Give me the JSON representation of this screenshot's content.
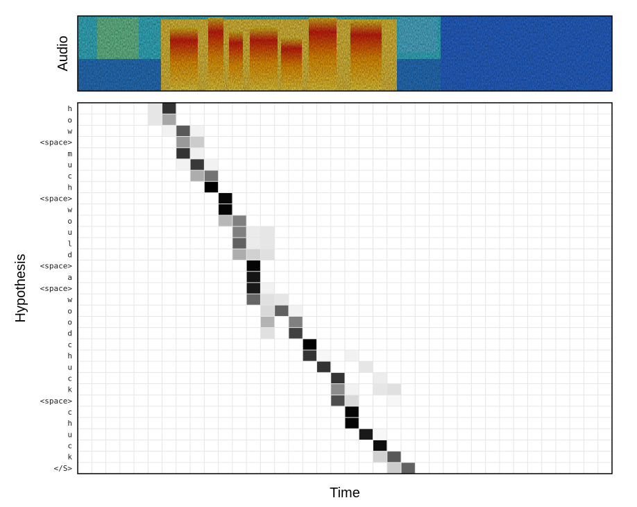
{
  "chart_data": {
    "type": "heatmap",
    "title": "",
    "panels": [
      {
        "name": "audio-spectrogram",
        "ylabel": "Audio"
      },
      {
        "name": "attention-alignment",
        "xlabel": "Time",
        "ylabel": "Hypothesis"
      }
    ],
    "xlabel": "Time",
    "ylabel": "Hypothesis",
    "spectrogram_label": "Audio",
    "n_time_steps": 38,
    "rows": [
      "h",
      "o",
      "w",
      "<space>",
      "m",
      "u",
      "c",
      "h",
      "<space>",
      "w",
      "o",
      "u",
      "l",
      "d",
      "<space>",
      "a",
      "<space>",
      "w",
      "o",
      "o",
      "d",
      "c",
      "h",
      "u",
      "c",
      "k",
      "<space>",
      "c",
      "h",
      "u",
      "c",
      "k",
      "</S>"
    ],
    "colorscale": [
      "#ffffff",
      "#000000"
    ],
    "cells": [
      [
        0,
        5,
        0.1
      ],
      [
        0,
        6,
        0.8
      ],
      [
        1,
        5,
        0.1
      ],
      [
        1,
        6,
        0.35
      ],
      [
        2,
        6,
        0.05
      ],
      [
        2,
        7,
        0.65
      ],
      [
        2,
        8,
        0.05
      ],
      [
        3,
        7,
        0.4
      ],
      [
        3,
        8,
        0.2
      ],
      [
        4,
        7,
        0.8
      ],
      [
        4,
        8,
        0.06
      ],
      [
        5,
        7,
        0.05
      ],
      [
        5,
        8,
        0.78
      ],
      [
        5,
        9,
        0.05
      ],
      [
        6,
        8,
        0.32
      ],
      [
        6,
        9,
        0.55
      ],
      [
        7,
        9,
        1.0
      ],
      [
        8,
        10,
        0.97
      ],
      [
        9,
        10,
        0.98
      ],
      [
        10,
        10,
        0.28
      ],
      [
        10,
        11,
        0.5
      ],
      [
        11,
        11,
        0.5
      ],
      [
        11,
        12,
        0.08
      ],
      [
        11,
        13,
        0.1
      ],
      [
        12,
        11,
        0.62
      ],
      [
        12,
        12,
        0.08
      ],
      [
        12,
        13,
        0.1
      ],
      [
        13,
        11,
        0.32
      ],
      [
        13,
        12,
        0.18
      ],
      [
        13,
        13,
        0.12
      ],
      [
        14,
        12,
        0.98
      ],
      [
        15,
        12,
        0.92
      ],
      [
        16,
        12,
        0.9
      ],
      [
        16,
        13,
        0.05
      ],
      [
        17,
        12,
        0.6
      ],
      [
        17,
        13,
        0.12
      ],
      [
        17,
        14,
        0.1
      ],
      [
        18,
        13,
        0.15
      ],
      [
        18,
        14,
        0.62
      ],
      [
        18,
        15,
        0.05
      ],
      [
        19,
        13,
        0.3
      ],
      [
        19,
        15,
        0.5
      ],
      [
        20,
        13,
        0.12
      ],
      [
        20,
        15,
        0.75
      ],
      [
        21,
        16,
        1.0
      ],
      [
        22,
        16,
        0.8
      ],
      [
        22,
        17,
        0.03
      ],
      [
        22,
        19,
        0.05
      ],
      [
        23,
        17,
        0.8
      ],
      [
        23,
        20,
        0.1
      ],
      [
        24,
        18,
        0.8
      ],
      [
        24,
        21,
        0.07
      ],
      [
        25,
        18,
        0.45
      ],
      [
        25,
        19,
        0.05
      ],
      [
        25,
        21,
        0.1
      ],
      [
        25,
        22,
        0.12
      ],
      [
        26,
        18,
        0.7
      ],
      [
        26,
        19,
        0.15
      ],
      [
        26,
        22,
        0.03
      ],
      [
        27,
        19,
        0.98
      ],
      [
        28,
        19,
        0.98
      ],
      [
        29,
        20,
        0.9
      ],
      [
        29,
        21,
        0.03
      ],
      [
        30,
        21,
        0.95
      ],
      [
        31,
        21,
        0.18
      ],
      [
        31,
        22,
        0.65
      ],
      [
        32,
        22,
        0.2
      ],
      [
        32,
        23,
        0.62
      ]
    ],
    "grid": true,
    "legend": "none"
  }
}
